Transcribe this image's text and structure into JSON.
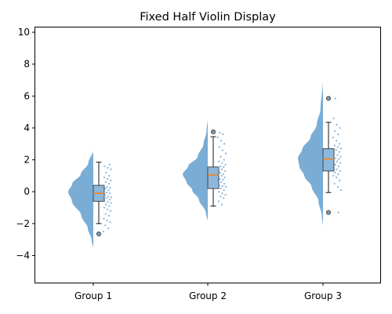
{
  "chart_data": {
    "type": "violin",
    "title": "Fixed Half Violin Display",
    "xlabel": "",
    "ylabel": "",
    "ylim": [
      -5.7,
      10.3
    ],
    "yticks": [
      -4,
      -2,
      0,
      2,
      4,
      6,
      8,
      10
    ],
    "categories": [
      "Group 1",
      "Group 2",
      "Group 3"
    ],
    "grid": false,
    "colors": {
      "violin": "#7aadd5",
      "box_fill": "#8db8db",
      "box_edge": "#3a3a3a",
      "median": "#ff7f0e",
      "points": "#5b9bd0",
      "whisker": "#000000",
      "outlier_fill": "#7a9cb8"
    },
    "groups": [
      {
        "name": "Group 1",
        "box": {
          "q1": -0.6,
          "median": -0.1,
          "q3": 0.4,
          "whisker_low": -2.0,
          "whisker_high": 1.85
        },
        "outliers": [
          -2.65
        ],
        "violin_range": [
          -3.6,
          2.6
        ],
        "density": [
          [
            -3.6,
            0.0
          ],
          [
            -3.0,
            0.07
          ],
          [
            -2.3,
            0.22
          ],
          [
            -1.5,
            0.48
          ],
          [
            -0.6,
            0.85
          ],
          [
            0.0,
            1.0
          ],
          [
            0.5,
            0.84
          ],
          [
            1.1,
            0.5
          ],
          [
            1.8,
            0.2
          ],
          [
            2.6,
            0.0
          ]
        ],
        "points": [
          -2.5,
          -2.3,
          -2.1,
          -1.9,
          -1.8,
          -1.7,
          -1.5,
          -1.4,
          -1.2,
          -1.1,
          -1.0,
          -0.9,
          -0.8,
          -0.7,
          -0.65,
          -0.6,
          -0.5,
          -0.4,
          -0.35,
          -0.3,
          -0.2,
          -0.1,
          -0.05,
          0.0,
          0.1,
          0.2,
          0.25,
          0.3,
          0.4,
          0.5,
          0.6,
          0.7,
          0.8,
          0.9,
          1.0,
          1.2,
          1.4,
          1.5,
          1.6,
          1.7
        ]
      },
      {
        "name": "Group 2",
        "box": {
          "q1": 0.2,
          "median": 1.05,
          "q3": 1.55,
          "whisker_low": -0.9,
          "whisker_high": 3.45
        },
        "outliers": [
          3.75
        ],
        "violin_range": [
          -1.9,
          4.6
        ],
        "density": [
          [
            -1.9,
            0.0
          ],
          [
            -1.3,
            0.08
          ],
          [
            -0.5,
            0.35
          ],
          [
            0.1,
            0.62
          ],
          [
            0.6,
            0.85
          ],
          [
            1.1,
            1.0
          ],
          [
            1.6,
            0.78
          ],
          [
            2.2,
            0.4
          ],
          [
            3.0,
            0.17
          ],
          [
            3.8,
            0.05
          ],
          [
            4.6,
            0.0
          ]
        ],
        "points": [
          -0.8,
          -0.6,
          -0.4,
          -0.3,
          -0.2,
          -0.1,
          0.0,
          0.1,
          0.2,
          0.3,
          0.35,
          0.4,
          0.5,
          0.6,
          0.7,
          0.75,
          0.8,
          0.9,
          1.0,
          1.05,
          1.1,
          1.2,
          1.3,
          1.4,
          1.5,
          1.55,
          1.6,
          1.7,
          1.8,
          1.9,
          2.0,
          2.2,
          2.4,
          2.6,
          2.8,
          3.0,
          3.2,
          3.4,
          3.6,
          3.7
        ]
      },
      {
        "name": "Group 3",
        "box": {
          "q1": 1.3,
          "median": 2.05,
          "q3": 2.7,
          "whisker_low": -0.05,
          "whisker_high": 4.35
        },
        "outliers": [
          5.85,
          -1.3
        ],
        "violin_range": [
          -2.2,
          7.0
        ],
        "density": [
          [
            -2.2,
            0.0
          ],
          [
            -1.5,
            0.05
          ],
          [
            -0.6,
            0.18
          ],
          [
            0.3,
            0.45
          ],
          [
            1.0,
            0.75
          ],
          [
            1.6,
            0.95
          ],
          [
            2.1,
            1.0
          ],
          [
            2.7,
            0.82
          ],
          [
            3.4,
            0.5
          ],
          [
            4.2,
            0.25
          ],
          [
            5.2,
            0.1
          ],
          [
            7.0,
            0.0
          ]
        ],
        "points": [
          0.1,
          0.3,
          0.5,
          0.7,
          0.9,
          1.0,
          1.1,
          1.2,
          1.3,
          1.4,
          1.5,
          1.6,
          1.7,
          1.8,
          1.9,
          2.0,
          2.05,
          2.1,
          2.2,
          2.3,
          2.4,
          2.5,
          2.6,
          2.7,
          2.8,
          2.9,
          3.0,
          3.2,
          3.4,
          3.6,
          3.8,
          4.0,
          4.2,
          4.6,
          -1.3,
          5.85
        ]
      }
    ]
  }
}
